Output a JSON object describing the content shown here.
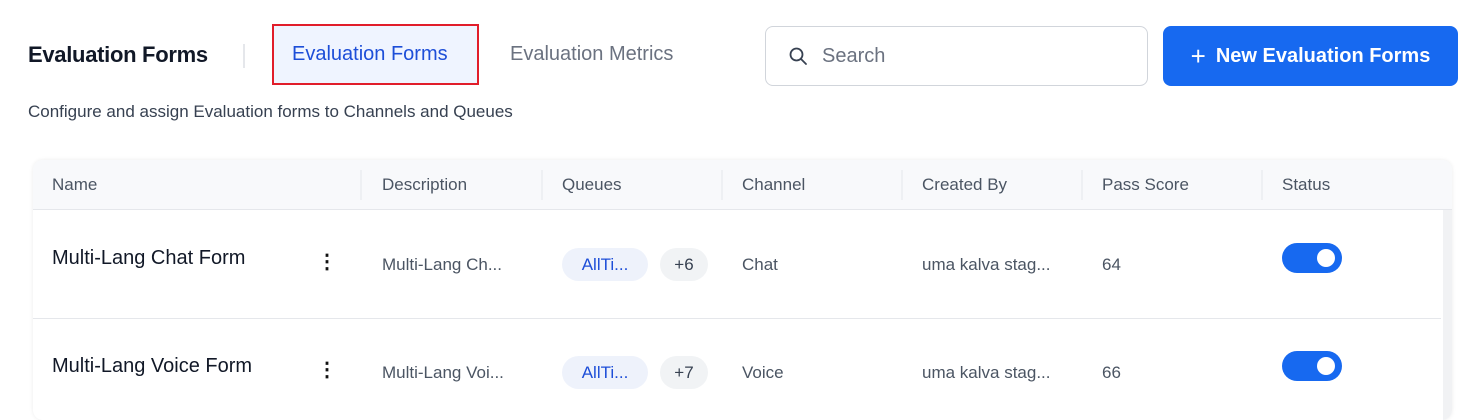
{
  "header": {
    "title": "Evaluation Forms",
    "tabs": [
      {
        "label": "Evaluation Forms",
        "active": true
      },
      {
        "label": "Evaluation Metrics",
        "active": false
      }
    ],
    "search_placeholder": "Search",
    "new_button": "New Evaluation Forms",
    "subtitle": "Configure and assign Evaluation forms to Channels and Queues"
  },
  "table": {
    "columns": [
      "Name",
      "Description",
      "Queues",
      "Channel",
      "Created By",
      "Pass Score",
      "Status"
    ],
    "rows": [
      {
        "name": "Multi-Lang Chat Form",
        "description": "Multi-Lang Ch...",
        "queue": "AllTi...",
        "more": "+6",
        "channel": "Chat",
        "created_by": "uma kalva stag...",
        "pass_score": "64",
        "status": true
      },
      {
        "name": "Multi-Lang Voice Form",
        "description": "Multi-Lang Voi...",
        "queue": "AllTi...",
        "more": "+7",
        "channel": "Voice",
        "created_by": "uma kalva stag...",
        "pass_score": "66",
        "status": true
      }
    ]
  },
  "colors": {
    "accent": "#1769f0",
    "highlight_border": "#e11d2a"
  }
}
